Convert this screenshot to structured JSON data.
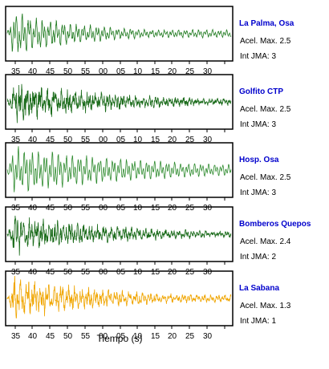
{
  "chart_data": {
    "type": "line",
    "xlabel": "Tiempo (s)",
    "x_tick_labels": [
      "35",
      "40",
      "45",
      "50",
      "55",
      "00",
      "05",
      "10",
      "15",
      "20",
      "25",
      "30"
    ],
    "panels": [
      {
        "name": "La Palma, Osa",
        "acel_label": "Acel. Max. 2.5",
        "int_label": "Int JMA: 3",
        "color": "#1f7a1f",
        "amplitude": 1.0,
        "decay": 0.9,
        "noise": 0.15,
        "show_x_tick_labels": true
      },
      {
        "name": "Golfito CTP",
        "acel_label": "Acel. Max. 2.5",
        "int_label": "Int JMA: 3",
        "color": "#1a6b1a",
        "amplitude": 0.95,
        "decay": 0.55,
        "noise": 0.45,
        "show_x_tick_labels": true
      },
      {
        "name": "Hosp. Osa",
        "acel_label": "Acel. Max. 2.5",
        "int_label": "Int JMA: 3",
        "color": "#2e8b2e",
        "amplitude": 1.0,
        "decay": 0.35,
        "noise": 0.1,
        "show_x_tick_labels": true
      },
      {
        "name": "Bomberos Quepos",
        "acel_label": "Acel. Max. 2.4",
        "int_label": "Int JMA: 2",
        "color": "#1a6b1a",
        "amplitude": 0.9,
        "decay": 0.5,
        "noise": 0.4,
        "show_x_tick_labels": true
      },
      {
        "name": "La Sabana",
        "acel_label": "Acel. Max. 1.3",
        "int_label": "Int JMA: 1",
        "color": "#f0a500",
        "amplitude": 1.0,
        "decay": 0.6,
        "noise": 0.35,
        "show_x_tick_labels": true
      }
    ]
  }
}
